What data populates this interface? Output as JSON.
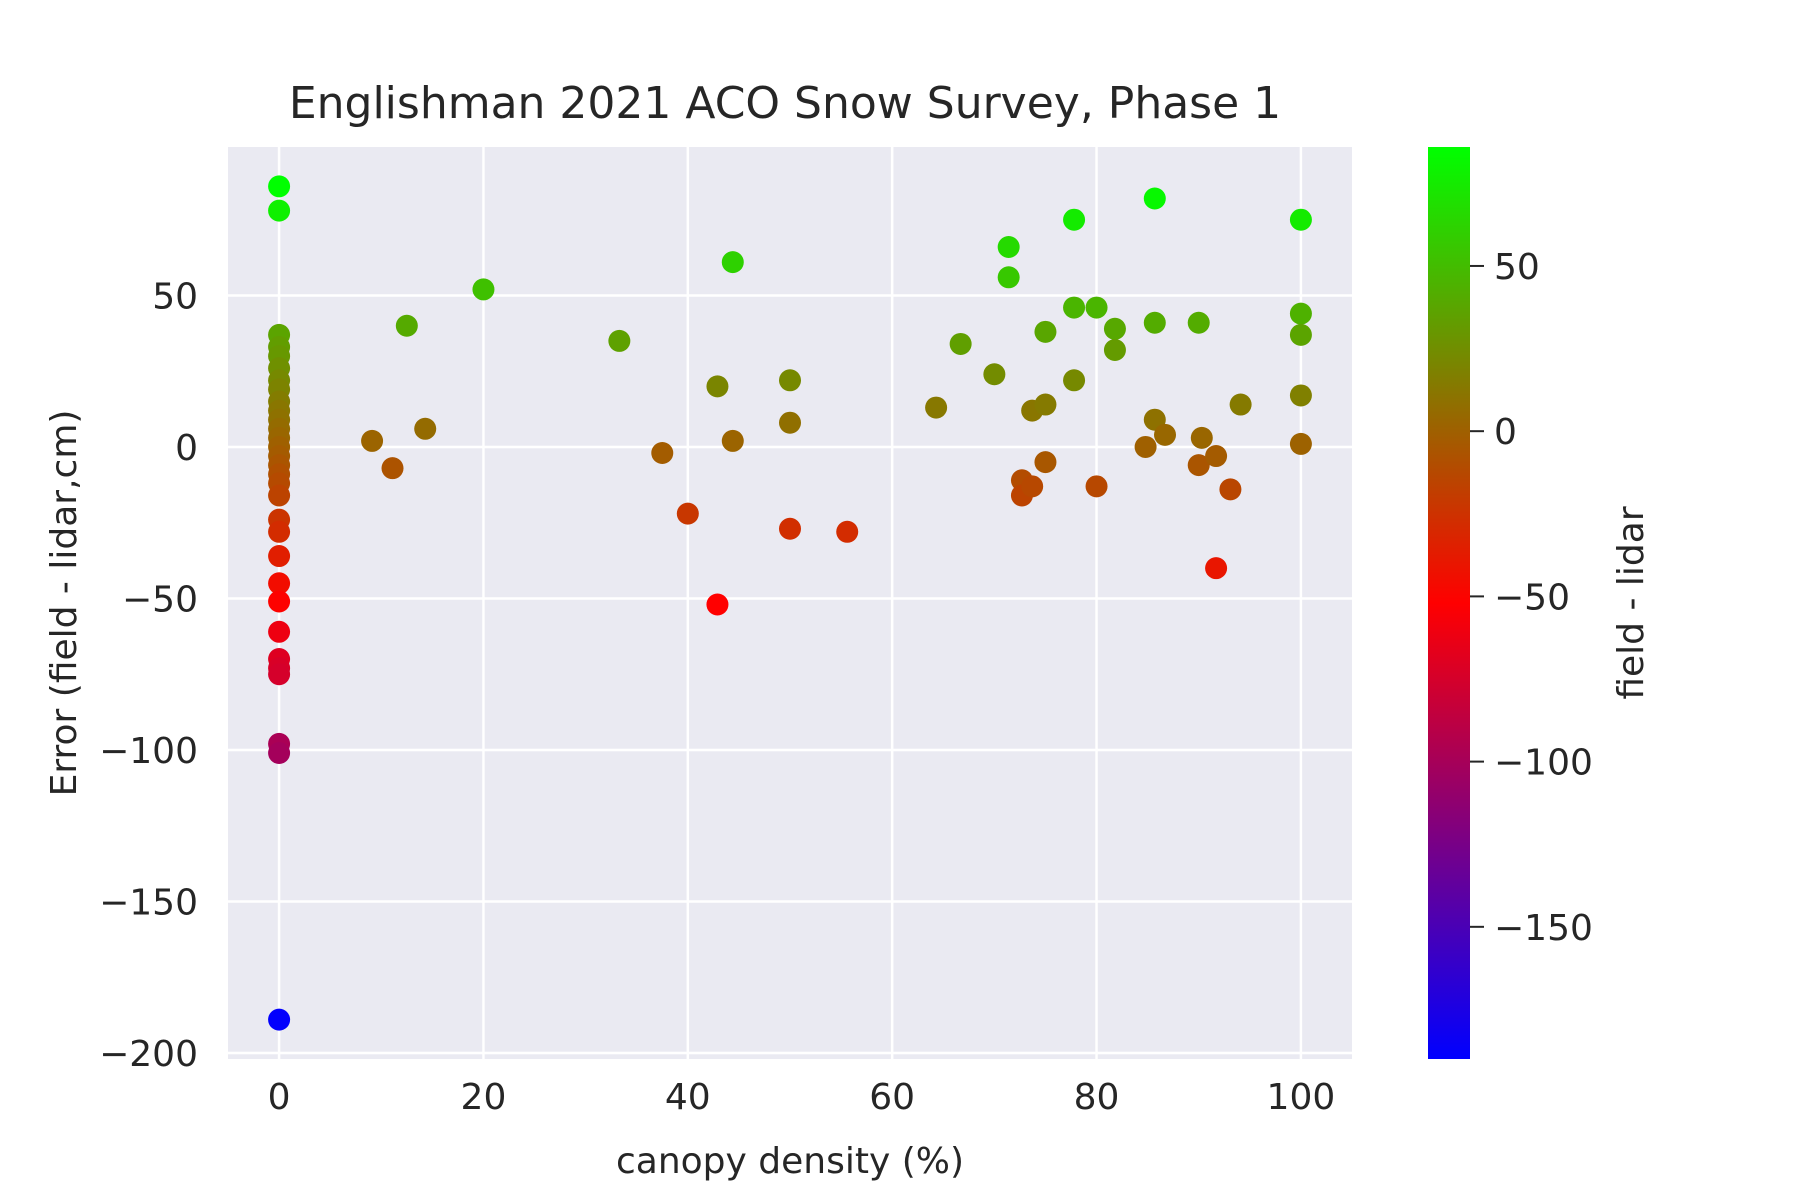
{
  "chart_data": {
    "type": "scatter",
    "title": "Englishman 2021 ACO Snow Survey, Phase 1",
    "xlabel": "canopy density (%)",
    "ylabel": "Error (field - lidar,cm)",
    "xlim": [
      -5,
      105
    ],
    "ylim": [
      -202,
      99
    ],
    "xticks": [
      0,
      20,
      40,
      60,
      80,
      100
    ],
    "yticks": [
      -200,
      -150,
      -100,
      -50,
      0,
      50
    ],
    "grid": true,
    "background": "#eaeaf2",
    "colorbar": {
      "label": "field - lidar",
      "min": -190,
      "max": 86,
      "ticks": [
        50,
        0,
        -50,
        -100,
        -150
      ],
      "colors": [
        "#0000ff",
        "#ff0000",
        "#00ff00"
      ]
    },
    "points": [
      {
        "x": 0,
        "y": 86
      },
      {
        "x": 0,
        "y": 78
      },
      {
        "x": 0,
        "y": 37
      },
      {
        "x": 0,
        "y": 33
      },
      {
        "x": 0,
        "y": 30
      },
      {
        "x": 0,
        "y": 26
      },
      {
        "x": 0,
        "y": 22
      },
      {
        "x": 0,
        "y": 19
      },
      {
        "x": 0,
        "y": 15
      },
      {
        "x": 0,
        "y": 12
      },
      {
        "x": 0,
        "y": 9
      },
      {
        "x": 0,
        "y": 6
      },
      {
        "x": 0,
        "y": 3
      },
      {
        "x": 0,
        "y": 0
      },
      {
        "x": 0,
        "y": -3
      },
      {
        "x": 0,
        "y": -6
      },
      {
        "x": 0,
        "y": -9
      },
      {
        "x": 0,
        "y": -12
      },
      {
        "x": 0,
        "y": -16
      },
      {
        "x": 0,
        "y": -24
      },
      {
        "x": 0,
        "y": -28
      },
      {
        "x": 0,
        "y": -36
      },
      {
        "x": 0,
        "y": -45
      },
      {
        "x": 0,
        "y": -51
      },
      {
        "x": 0,
        "y": -61
      },
      {
        "x": 0,
        "y": -70
      },
      {
        "x": 0,
        "y": -73
      },
      {
        "x": 0,
        "y": -75
      },
      {
        "x": 0,
        "y": -98
      },
      {
        "x": 0,
        "y": -101
      },
      {
        "x": 0,
        "y": -189
      },
      {
        "x": 9.1,
        "y": 2
      },
      {
        "x": 11.1,
        "y": -7
      },
      {
        "x": 12.5,
        "y": 40
      },
      {
        "x": 14.3,
        "y": 6
      },
      {
        "x": 20,
        "y": 52
      },
      {
        "x": 33.3,
        "y": 35
      },
      {
        "x": 37.5,
        "y": -2
      },
      {
        "x": 40,
        "y": -22
      },
      {
        "x": 42.9,
        "y": 20
      },
      {
        "x": 42.9,
        "y": -52
      },
      {
        "x": 44.4,
        "y": 61
      },
      {
        "x": 44.4,
        "y": 2
      },
      {
        "x": 50,
        "y": 22
      },
      {
        "x": 50,
        "y": 8
      },
      {
        "x": 50,
        "y": -27
      },
      {
        "x": 55.6,
        "y": -28
      },
      {
        "x": 64.3,
        "y": 13
      },
      {
        "x": 66.7,
        "y": 34
      },
      {
        "x": 70,
        "y": 24
      },
      {
        "x": 71.4,
        "y": 66
      },
      {
        "x": 71.4,
        "y": 56
      },
      {
        "x": 72.7,
        "y": -11
      },
      {
        "x": 72.7,
        "y": -16
      },
      {
        "x": 73.7,
        "y": 12
      },
      {
        "x": 73.7,
        "y": -13
      },
      {
        "x": 75,
        "y": 38
      },
      {
        "x": 75,
        "y": 14
      },
      {
        "x": 75,
        "y": -5
      },
      {
        "x": 77.8,
        "y": 75
      },
      {
        "x": 77.8,
        "y": 46
      },
      {
        "x": 77.8,
        "y": 22
      },
      {
        "x": 80,
        "y": 46
      },
      {
        "x": 80,
        "y": -13
      },
      {
        "x": 81.8,
        "y": 39
      },
      {
        "x": 81.8,
        "y": 32
      },
      {
        "x": 84.8,
        "y": 0
      },
      {
        "x": 85.7,
        "y": 82
      },
      {
        "x": 85.7,
        "y": 41
      },
      {
        "x": 85.7,
        "y": 9
      },
      {
        "x": 86.7,
        "y": 4
      },
      {
        "x": 90,
        "y": 41
      },
      {
        "x": 90,
        "y": -6
      },
      {
        "x": 90.3,
        "y": 3
      },
      {
        "x": 91.7,
        "y": -3
      },
      {
        "x": 91.7,
        "y": -40
      },
      {
        "x": 93.1,
        "y": -14
      },
      {
        "x": 94.1,
        "y": 14
      },
      {
        "x": 100,
        "y": 75
      },
      {
        "x": 100,
        "y": 44
      },
      {
        "x": 100,
        "y": 37
      },
      {
        "x": 100,
        "y": 17
      },
      {
        "x": 100,
        "y": 1
      }
    ]
  }
}
